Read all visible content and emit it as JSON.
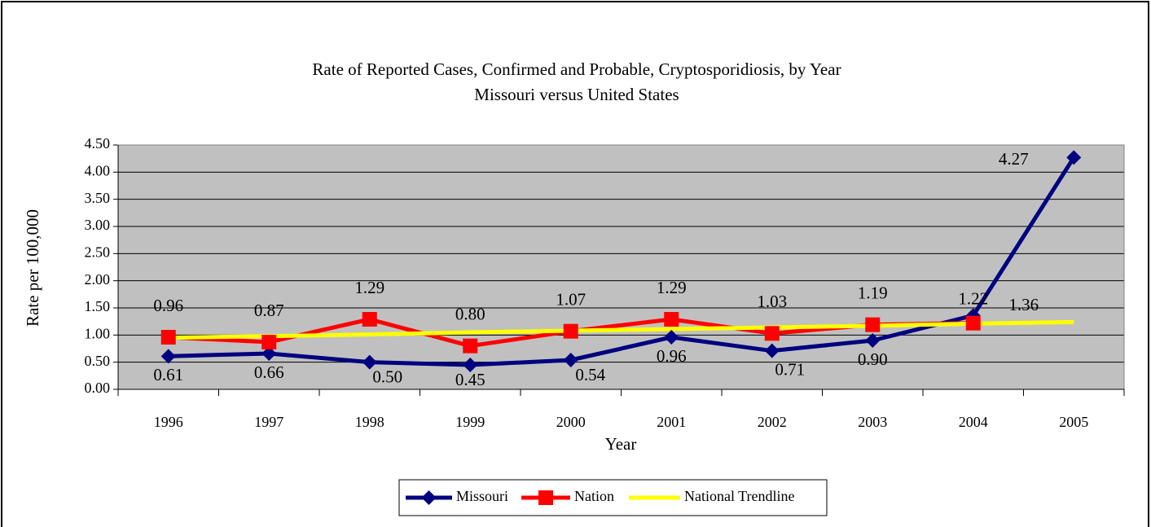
{
  "chart_data": {
    "type": "line",
    "title": "Rate of Reported Cases, Confirmed and Probable, Cryptosporidiosis, by Year",
    "subtitle": "Missouri versus United States",
    "x_label": "Year",
    "y_label": "Rate per 100,000",
    "categories": [
      "1996",
      "1997",
      "1998",
      "1999",
      "2000",
      "2001",
      "2002",
      "2003",
      "2004",
      "2005"
    ],
    "series": [
      {
        "name": "Missouri",
        "color": "#000080",
        "marker": "diamond",
        "values": [
          0.61,
          0.66,
          0.5,
          0.45,
          0.54,
          0.96,
          0.71,
          0.9,
          1.36,
          4.27
        ],
        "value_labels": [
          "0.61",
          "0.66",
          "0.50",
          "0.45",
          "0.54",
          "0.96",
          "0.71",
          "0.90",
          "1.36",
          "4.27"
        ]
      },
      {
        "name": "Nation",
        "color": "#ff0000",
        "marker": "square",
        "values": [
          0.96,
          0.87,
          1.29,
          0.8,
          1.07,
          1.29,
          1.03,
          1.19,
          1.22,
          null
        ],
        "value_labels": [
          "0.96",
          "0.87",
          "1.29",
          "0.80",
          "1.07",
          "1.29",
          "1.03",
          "1.19",
          "1.22",
          null
        ]
      },
      {
        "name": "National Trendline",
        "color": "#ffff00",
        "marker": "none",
        "values": [
          0.95,
          0.98,
          1.01,
          1.05,
          1.08,
          1.11,
          1.14,
          1.17,
          1.21,
          1.24
        ]
      }
    ],
    "ylim": [
      0,
      4.5
    ],
    "yticks": [
      {
        "value": 0,
        "label": "0.00"
      },
      {
        "value": 0.5,
        "label": "0.50"
      },
      {
        "value": 1,
        "label": "1.00"
      },
      {
        "value": 1.5,
        "label": "1.50"
      },
      {
        "value": 2,
        "label": "2.00"
      },
      {
        "value": 2.5,
        "label": "2.50"
      },
      {
        "value": 3,
        "label": "3.00"
      },
      {
        "value": 3.5,
        "label": "3.50"
      },
      {
        "value": 4,
        "label": "4.00"
      },
      {
        "value": 4.5,
        "label": "4.50"
      }
    ],
    "grid": true,
    "legend": "bottom",
    "plot_background": "#c0c0c0"
  }
}
